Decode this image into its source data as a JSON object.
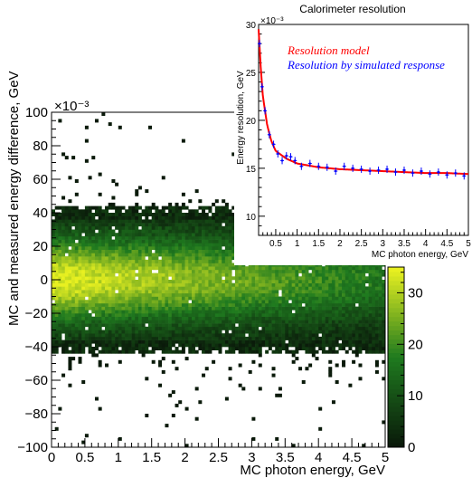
{
  "chart_data": [
    {
      "type": "heatmap",
      "title": "",
      "xlabel": "MC photon energy, GeV",
      "ylabel": "MC and measured energy difference, GeV",
      "xlim": [
        0,
        5
      ],
      "ylim": [
        -0.1,
        0.1
      ],
      "y_multiplier": "×10⁻³",
      "x_ticks": [
        "0",
        "0.5",
        "1",
        "1.5",
        "2",
        "2.5",
        "3",
        "3.5",
        "4",
        "4.5",
        "5"
      ],
      "y_ticks": [
        "−100",
        "−80",
        "−60",
        "−40",
        "−20",
        "0",
        "20",
        "40",
        "60",
        "80",
        "100"
      ],
      "z_range": [
        0,
        35
      ],
      "z_ticks": [
        "0",
        "10",
        "20",
        "30"
      ],
      "colors": {
        "low": "#0a1a0a",
        "mid": "#1f7a1f",
        "high": "#e8f020"
      },
      "band": {
        "y_center": 0.0,
        "y_core_halfwidth": 0.02,
        "y_edge": 0.045
      }
    },
    {
      "type": "scatter",
      "title": "Calorimeter resolution",
      "xlabel": "MC photon energy, GeV",
      "ylabel": "Energy resolution, GeV",
      "xlim": [
        0.1,
        5
      ],
      "ylim": [
        0.008,
        0.03
      ],
      "y_multiplier": "×10⁻³",
      "x_ticks": [
        "0.5",
        "1",
        "1.5",
        "2",
        "2.5",
        "3",
        "3.5",
        "4",
        "4.5",
        "5"
      ],
      "y_ticks": [
        "10",
        "15",
        "20",
        "25",
        "30"
      ],
      "series": [
        {
          "name": "Resolution model",
          "color": "#ff0000",
          "type": "line",
          "x": [
            0.1,
            0.15,
            0.2,
            0.3,
            0.4,
            0.5,
            0.75,
            1,
            1.5,
            2,
            2.5,
            3,
            3.5,
            4,
            4.5,
            5
          ],
          "y": [
            0.0295,
            0.0255,
            0.0225,
            0.0195,
            0.0178,
            0.0168,
            0.016,
            0.0155,
            0.0151,
            0.0149,
            0.0148,
            0.0147,
            0.0146,
            0.0145,
            0.0145,
            0.0144
          ]
        },
        {
          "name": "Resolution by simulated response",
          "color": "#0000ff",
          "type": "points",
          "x": [
            0.12,
            0.18,
            0.25,
            0.35,
            0.45,
            0.55,
            0.65,
            0.75,
            0.85,
            0.95,
            1.1,
            1.3,
            1.5,
            1.7,
            1.9,
            2.1,
            2.3,
            2.5,
            2.7,
            2.9,
            3.1,
            3.3,
            3.5,
            3.7,
            3.9,
            4.1,
            4.3,
            4.5,
            4.7,
            4.9
          ],
          "y": [
            0.028,
            0.0235,
            0.021,
            0.0185,
            0.0175,
            0.0165,
            0.0158,
            0.0163,
            0.0162,
            0.0158,
            0.0152,
            0.0155,
            0.0152,
            0.0151,
            0.0147,
            0.0152,
            0.015,
            0.0149,
            0.0147,
            0.0148,
            0.0149,
            0.0146,
            0.0148,
            0.0145,
            0.0147,
            0.0144,
            0.0146,
            0.0143,
            0.0145,
            0.0142
          ]
        }
      ]
    }
  ]
}
